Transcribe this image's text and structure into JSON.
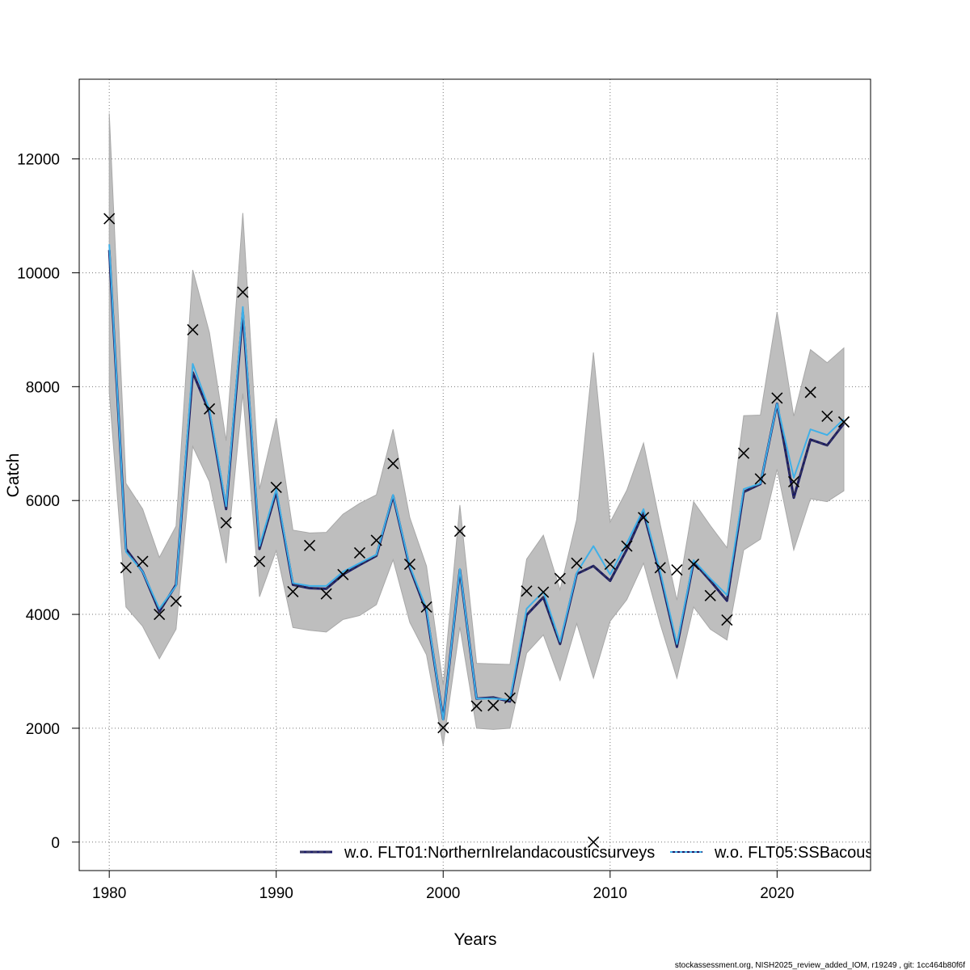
{
  "chart_data": {
    "type": "line",
    "xlabel": "Years",
    "ylabel": "Catch",
    "xlim": [
      1978.2,
      2025.6
    ],
    "ylim": [
      -500,
      13400
    ],
    "x_ticks": [
      1980,
      1990,
      2000,
      2010,
      2020
    ],
    "y_ticks": [
      0,
      2000,
      4000,
      6000,
      8000,
      10000,
      12000
    ],
    "grid": true,
    "legend_position": "bottom-right",
    "years": [
      1980,
      1981,
      1982,
      1983,
      1984,
      1985,
      1986,
      1987,
      1988,
      1989,
      1990,
      1991,
      1992,
      1993,
      1994,
      1995,
      1996,
      1997,
      1998,
      1999,
      2000,
      2001,
      2002,
      2003,
      2004,
      2005,
      2006,
      2007,
      2008,
      2009,
      2010,
      2011,
      2012,
      2013,
      2014,
      2015,
      2016,
      2017,
      2018,
      2019,
      2020,
      2021,
      2022,
      2023,
      2024
    ],
    "observed": [
      10950,
      4820,
      4930,
      4000,
      4230,
      9000,
      7610,
      5610,
      9660,
      4930,
      6230,
      4400,
      5210,
      4360,
      4700,
      5080,
      5300,
      6650,
      4880,
      4130,
      2010,
      5460,
      2390,
      2400,
      2530,
      4410,
      4390,
      4630,
      4900,
      0,
      4880,
      5200,
      5700,
      4820,
      4780,
      4880,
      4330,
      3900,
      6830,
      6380,
      7800,
      6330,
      7900,
      7480,
      7380
    ],
    "ci_upper": [
      12800,
      6300,
      5850,
      5000,
      5550,
      10050,
      8950,
      7050,
      11050,
      6200,
      7450,
      5480,
      5430,
      5440,
      5760,
      5950,
      6100,
      7250,
      5700,
      4850,
      2760,
      5920,
      3140,
      3130,
      3120,
      4970,
      5390,
      4430,
      5670,
      8600,
      5620,
      6180,
      7010,
      5580,
      4250,
      5980,
      5560,
      5170,
      7490,
      7500,
      9310,
      7480,
      8650,
      8420,
      8680
    ],
    "ci_lower": [
      7900,
      4130,
      3790,
      3220,
      3740,
      6950,
      6330,
      4900,
      7880,
      4310,
      5120,
      3770,
      3720,
      3690,
      3910,
      3980,
      4170,
      4960,
      3860,
      3290,
      1700,
      3780,
      2000,
      1980,
      2000,
      3320,
      3640,
      2840,
      3840,
      2880,
      3880,
      4260,
      4900,
      3830,
      2880,
      4130,
      3740,
      3550,
      5130,
      5320,
      6550,
      5130,
      6030,
      5980,
      6170
    ],
    "series": [
      {
        "name": "w.o. FLT01:NorthernIrelandacousticsurveys",
        "color": "#1a1a66",
        "dash": "solid",
        "values": [
          10400,
          5150,
          4750,
          4050,
          4520,
          8250,
          7550,
          5850,
          9300,
          5150,
          6150,
          4520,
          4460,
          4450,
          4700,
          4870,
          5030,
          6080,
          4820,
          4050,
          2160,
          4780,
          2520,
          2540,
          2470,
          3990,
          4300,
          3480,
          4710,
          4850,
          4590,
          5140,
          5790,
          4700,
          3430,
          4920,
          4590,
          4240,
          6150,
          6290,
          7700,
          6050,
          7070,
          6970,
          7350
        ]
      },
      {
        "name": "w.o. FLT05:SSBacous",
        "color": "#3fb0e8",
        "dash": "4,3",
        "values": [
          10500,
          5100,
          4750,
          4100,
          4500,
          8400,
          7600,
          5900,
          9400,
          5200,
          6200,
          4550,
          4500,
          4500,
          4750,
          4900,
          5050,
          6100,
          4850,
          4100,
          2150,
          4800,
          2520,
          2520,
          2500,
          4100,
          4400,
          3520,
          4730,
          5200,
          4700,
          5250,
          5850,
          4750,
          3480,
          4950,
          4630,
          4340,
          6200,
          6300,
          7700,
          6400,
          7250,
          7150,
          7430
        ]
      }
    ]
  },
  "legend": {
    "series_1_label": "w.o. FLT01:NorthernIrelandacousticsurveys",
    "series_2_label": "w.o. FLT05:SSBacous"
  },
  "footer": {
    "text": "stockassessment.org, NISH2025_review_added_IOM, r19249 , git: 1cc464b80f6f"
  }
}
